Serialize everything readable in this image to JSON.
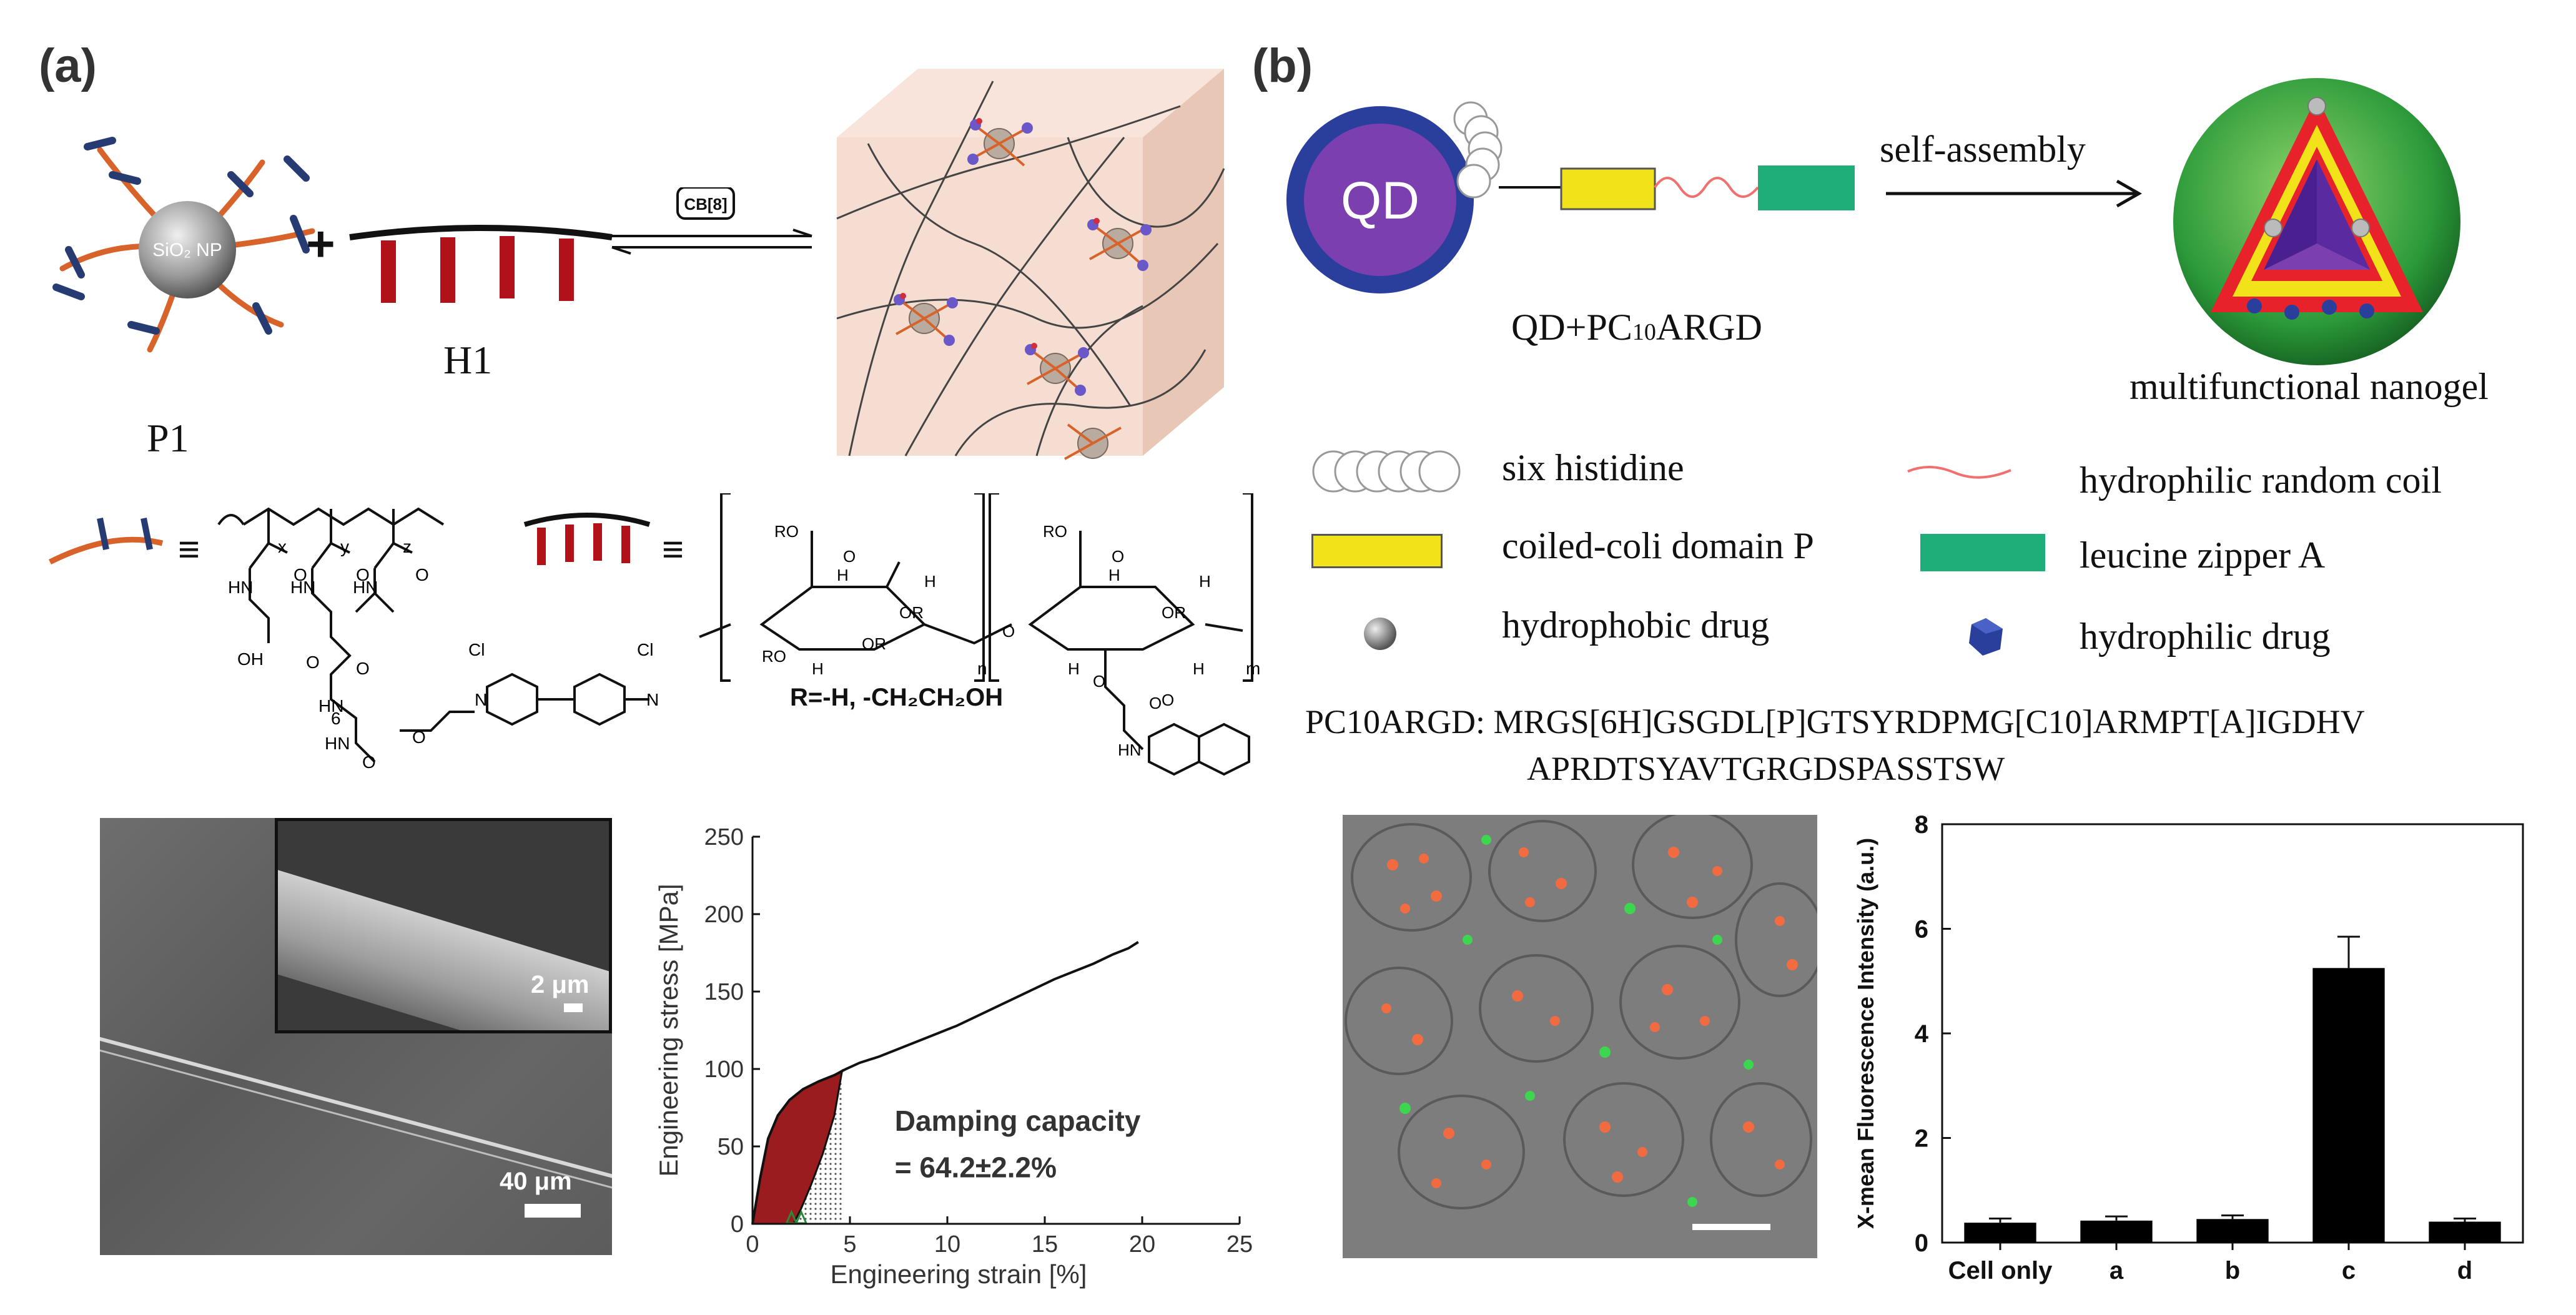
{
  "panel_a": {
    "label": "(a)",
    "scheme": {
      "nanoparticle_label": "SiO₂ NP",
      "plus": "+",
      "p1_label": "P1",
      "h1_label": "H1",
      "host_label": "CB[8]",
      "r_group": "R=-H, -CH₂CH₂OH",
      "equiv": "≡",
      "subscripts": [
        "x",
        "y",
        "z",
        "n",
        "m",
        "6"
      ],
      "atoms": [
        "O",
        "HN",
        "O",
        "HN",
        "O",
        "HN",
        "OH",
        "O",
        "O",
        "HN",
        "HN",
        "O",
        "O",
        "N",
        "N",
        "Cl",
        "Cl",
        "RO",
        "RO",
        "H",
        "OR",
        "H",
        "OR",
        "H",
        "O",
        "RO",
        "O",
        "H",
        "O",
        "H",
        "OR",
        "H",
        "O",
        "H",
        "O",
        "HN",
        "O"
      ]
    },
    "sem": {
      "inset_scale": "2 μm",
      "main_scale": "40 μm"
    },
    "chart_data": {
      "type": "line",
      "xlabel": "Engineering strain [%]",
      "ylabel": "Engineering stress [MPa]",
      "xlim": [
        0,
        25
      ],
      "ylim": [
        0,
        250
      ],
      "xticks": [
        0,
        5,
        10,
        15,
        20,
        25
      ],
      "yticks": [
        0,
        50,
        100,
        150,
        200,
        250
      ],
      "annotation_title": "Damping capacity",
      "annotation_value": "= 64.2±2.2%",
      "series": [
        {
          "values": [
            [
              0,
              0
            ],
            [
              0.4,
              30
            ],
            [
              0.8,
              55
            ],
            [
              1.3,
              70
            ],
            [
              1.9,
              80
            ],
            [
              2.6,
              87
            ],
            [
              3.4,
              92
            ],
            [
              4.2,
              96
            ],
            [
              4.8,
              100
            ],
            [
              5.5,
              104
            ],
            [
              6.5,
              108
            ],
            [
              7.5,
              113
            ],
            [
              8.5,
              118
            ],
            [
              9.5,
              123
            ],
            [
              10.5,
              128
            ],
            [
              11.5,
              134
            ],
            [
              12.5,
              140
            ],
            [
              13.5,
              146
            ],
            [
              14.5,
              152
            ],
            [
              15.5,
              158
            ],
            [
              16.5,
              163
            ],
            [
              17.5,
              168
            ],
            [
              18.5,
              174
            ],
            [
              19.3,
              178
            ],
            [
              19.8,
              182
            ]
          ]
        }
      ],
      "hysteresis_loading": [
        [
          0,
          0
        ],
        [
          0.4,
          30
        ],
        [
          0.8,
          55
        ],
        [
          1.3,
          70
        ],
        [
          1.9,
          80
        ],
        [
          2.6,
          87
        ],
        [
          3.4,
          92
        ],
        [
          4.2,
          96
        ],
        [
          4.6,
          99
        ]
      ],
      "hysteresis_unloading": [
        [
          4.6,
          99
        ],
        [
          4.2,
          70
        ],
        [
          3.6,
          45
        ],
        [
          3.0,
          25
        ],
        [
          2.5,
          10
        ],
        [
          2.1,
          0
        ]
      ],
      "marker_x": [
        2.0,
        2.5
      ]
    }
  },
  "panel_b": {
    "label": "(b)",
    "scheme": {
      "qd_label": "QD",
      "construct_label": "QD+PC",
      "construct_sub": "10",
      "construct_suffix": "ARGD",
      "arrow_label": "self-assembly",
      "product_label": "multifunctional nanogel"
    },
    "legend": [
      {
        "label": "six histidine",
        "icon": "histidine-rings-icon"
      },
      {
        "label": "hydrophilic random coil",
        "icon": "coil-line-icon"
      },
      {
        "label": "coiled-coli domain P",
        "icon": "yellow-block-icon"
      },
      {
        "label": "leucine zipper A",
        "icon": "green-block-icon"
      },
      {
        "label": "hydrophobic drug",
        "icon": "grey-sphere-icon"
      },
      {
        "label": "hydrophilic drug",
        "icon": "blue-polyhedron-icon"
      }
    ],
    "sequence_line1": "PC10ARGD: MRGS[6H]GSGDL[P]GTSYRDPMG[C10]ARMPT[A]IGDHV",
    "sequence_line2": "APRDTSYAVTGRGDSPASSTSW",
    "colors": {
      "qd": "#7b3fb0",
      "qd_ring": "#2a3f9c",
      "coiled": "#f2e21a",
      "zipper": "#1fae7a",
      "coil": "#f07070"
    },
    "chart_data": {
      "type": "bar",
      "ylabel": "X-mean Fluorescence Intensity (a.u.)",
      "categories": [
        "Cell only",
        "a",
        "b",
        "c",
        "d"
      ],
      "values": [
        0.38,
        0.42,
        0.45,
        5.25,
        0.4
      ],
      "errors": [
        0.08,
        0.08,
        0.07,
        0.6,
        0.06
      ],
      "ylim": [
        0,
        8
      ],
      "yticks": [
        0,
        2,
        4,
        6,
        8
      ]
    }
  }
}
